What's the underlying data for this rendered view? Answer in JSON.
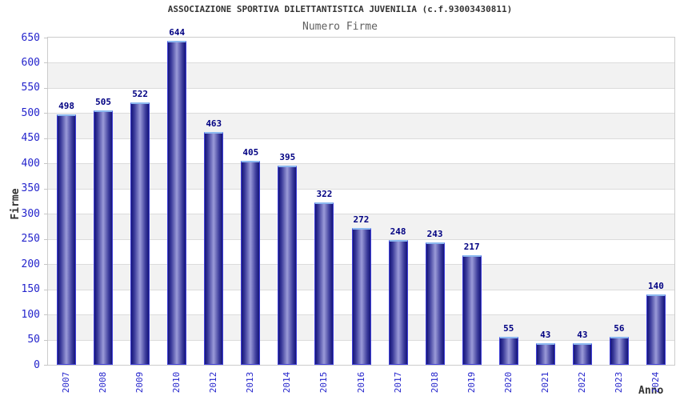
{
  "header": {
    "title": "ASSOCIAZIONE SPORTIVA DILETTANTISTICA JUVENILIA (c.f.93003430811)",
    "subtitle": "Numero Firme"
  },
  "chart_data": {
    "type": "bar",
    "title": "Numero Firme",
    "categories": [
      "2007",
      "2008",
      "2009",
      "2010",
      "2012",
      "2013",
      "2014",
      "2015",
      "2016",
      "2017",
      "2018",
      "2019",
      "2020",
      "2021",
      "2022",
      "2023",
      "2024"
    ],
    "values": [
      498,
      505,
      522,
      644,
      463,
      405,
      395,
      322,
      272,
      248,
      243,
      217,
      55,
      43,
      43,
      56,
      140
    ],
    "xlabel": "Anno",
    "ylabel": "Firme",
    "ylim": [
      0,
      650
    ],
    "ytick_step": 50,
    "grid": true,
    "legend": false,
    "notes": "Year 2011 has no bar; values shown as bold labels above each bar",
    "colors": {
      "bar_edge": "#15157a",
      "bar_center": "#9b9bd8",
      "bar_outline": "#4040d8",
      "bar_top_cap": "#8cb8f0",
      "tick_label_blue": "#2424cc",
      "value_label_navy": "#000082",
      "band_gray": "#f2f2f2",
      "gridline": "#dcdcdc",
      "plot_border": "#cccccc",
      "title_color": "#333333",
      "subtitle_color": "#606060"
    }
  }
}
